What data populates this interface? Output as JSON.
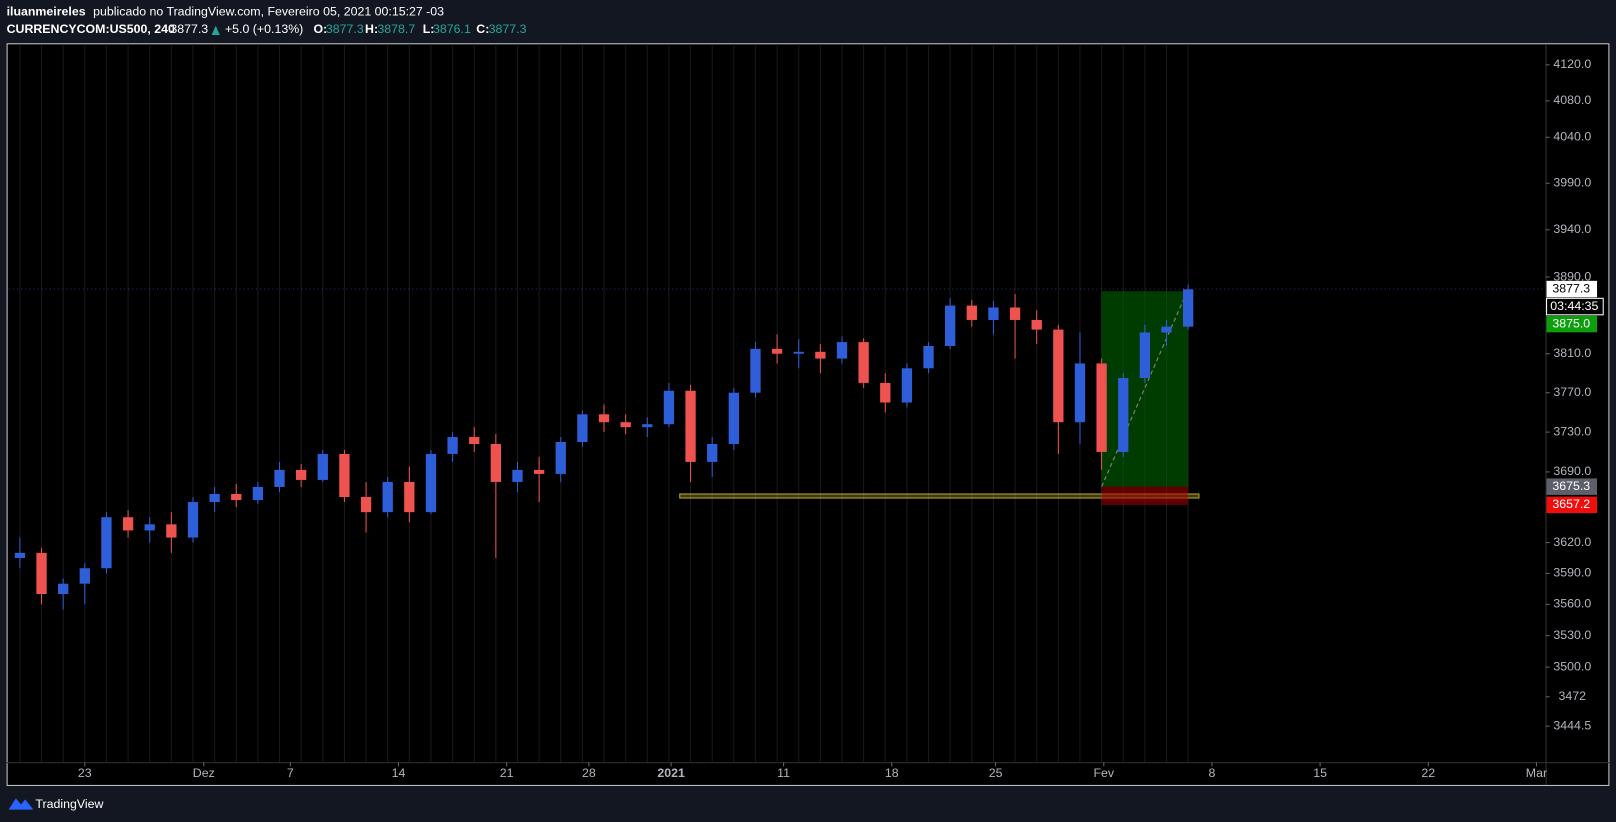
{
  "header": {
    "author": "iluanmeireles",
    "published": "publicado no TradingView.com, Fevereiro 05, 2021 00:15:27 -03",
    "symbol": "CURRENCYCOM:US500, 240",
    "last": "3877.3",
    "change": "+5.0 (+0.13%)",
    "ohlc": [
      {
        "label": "O:",
        "value": "3877.3"
      },
      {
        "label": "H:",
        "value": "3878.7"
      },
      {
        "label": "L:",
        "value": "3876.1"
      },
      {
        "label": "C:",
        "value": "3877.3"
      }
    ]
  },
  "footer": {
    "brand": "TradingView"
  },
  "chart_data": {
    "type": "candlestick",
    "log": true,
    "grid": true,
    "up_color": "#2f5fd8",
    "down_color": "#ef5350",
    "x": [
      -3,
      -2,
      -1,
      0,
      1,
      2,
      3,
      4,
      5,
      6,
      7,
      8,
      9,
      10,
      11,
      12,
      13,
      14,
      15,
      16,
      17,
      18,
      19,
      20,
      21,
      22,
      23,
      24,
      25,
      26,
      27,
      28,
      29,
      30,
      31,
      32,
      33,
      34,
      35,
      36,
      37,
      38,
      39,
      40,
      41,
      42,
      43,
      44,
      45,
      46,
      47,
      48,
      49,
      50,
      51
    ],
    "open": [
      3605,
      3610,
      3570,
      3580,
      3595,
      3645,
      3632,
      3638,
      3625,
      3660,
      3668,
      3662,
      3675,
      3692,
      3682,
      3708,
      3665,
      3650,
      3680,
      3650,
      3708,
      3725,
      3718,
      3680,
      3692,
      3688,
      3720,
      3748,
      3740,
      3735,
      3738,
      3772,
      3700,
      3718,
      3770,
      3815,
      3810,
      3812,
      3805,
      3822,
      3780,
      3760,
      3795,
      3818,
      3860,
      3845,
      3858,
      3845,
      3835,
      3740,
      3800,
      3710,
      3785,
      3832,
      3838
    ],
    "high": [
      3625,
      3615,
      3585,
      3600,
      3650,
      3652,
      3645,
      3650,
      3665,
      3675,
      3678,
      3680,
      3700,
      3698,
      3712,
      3712,
      3680,
      3685,
      3695,
      3712,
      3730,
      3735,
      3728,
      3700,
      3705,
      3725,
      3752,
      3758,
      3748,
      3745,
      3780,
      3778,
      3725,
      3775,
      3822,
      3830,
      3825,
      3820,
      3828,
      3826,
      3790,
      3800,
      3822,
      3868,
      3866,
      3865,
      3872,
      3855,
      3840,
      3832,
      3805,
      3790,
      3840,
      3845,
      3882
    ],
    "low": [
      3595,
      3560,
      3555,
      3560,
      3590,
      3625,
      3620,
      3610,
      3620,
      3650,
      3655,
      3658,
      3670,
      3675,
      3680,
      3660,
      3630,
      3645,
      3640,
      3648,
      3700,
      3710,
      3605,
      3670,
      3660,
      3680,
      3715,
      3730,
      3728,
      3725,
      3735,
      3680,
      3685,
      3712,
      3765,
      3800,
      3795,
      3790,
      3800,
      3775,
      3750,
      3755,
      3790,
      3815,
      3838,
      3830,
      3805,
      3820,
      3708,
      3718,
      3692,
      3705,
      3780,
      3818,
      3835
    ],
    "close": [
      3610,
      3570,
      3580,
      3595,
      3645,
      3632,
      3638,
      3625,
      3660,
      3668,
      3662,
      3675,
      3692,
      3682,
      3708,
      3665,
      3650,
      3680,
      3650,
      3708,
      3725,
      3718,
      3680,
      3692,
      3688,
      3720,
      3748,
      3740,
      3735,
      3738,
      3772,
      3700,
      3718,
      3770,
      3815,
      3810,
      3812,
      3805,
      3822,
      3780,
      3760,
      3795,
      3818,
      3860,
      3845,
      3858,
      3845,
      3835,
      3740,
      3800,
      3710,
      3785,
      3832,
      3838,
      3877
    ],
    "xlim": [
      -3.52,
      67.52
    ],
    "xticks": [
      {
        "value": 0,
        "label": "23"
      },
      {
        "value": 5.5,
        "label": "Dez"
      },
      {
        "value": 9.5,
        "label": "7"
      },
      {
        "value": 14.5,
        "label": "14"
      },
      {
        "value": 19.5,
        "label": "21"
      },
      {
        "value": 23.3,
        "label": "28"
      },
      {
        "value": 27.1,
        "label": "2021"
      },
      {
        "value": 32.3,
        "label": "11"
      },
      {
        "value": 37.3,
        "label": "18"
      },
      {
        "value": 42.1,
        "label": "25"
      },
      {
        "value": 47.1,
        "label": "Fev"
      },
      {
        "value": 52.1,
        "label": "8"
      },
      {
        "value": 57.1,
        "label": "15"
      },
      {
        "value": 62.1,
        "label": "22"
      },
      {
        "value": 67.1,
        "label": "Mar"
      }
    ],
    "ylim": [
      3411,
      4143
    ],
    "yticks": [
      {
        "value": 4120,
        "label": "4120.0"
      },
      {
        "value": 4080,
        "label": "4080.0"
      },
      {
        "value": 4040,
        "label": "4040.0"
      },
      {
        "value": 3990,
        "label": "3990.0"
      },
      {
        "value": 3940,
        "label": "3940.0"
      },
      {
        "value": 3890,
        "label": "3890.0"
      },
      {
        "value": 3810,
        "label": "3810.0"
      },
      {
        "value": 3770,
        "label": "3770.0"
      },
      {
        "value": 3730,
        "label": "3730.0"
      },
      {
        "value": 3690,
        "label": "3690.0"
      },
      {
        "value": 3620,
        "label": "3620.0"
      },
      {
        "value": 3590,
        "label": "3590.0"
      },
      {
        "value": 3560,
        "label": "3560.0"
      },
      {
        "value": 3530,
        "label": "3530.0"
      },
      {
        "value": 3500,
        "label": "3500.0"
      },
      3472,
      3444.5
    ],
    "last_price": {
      "value": 3877.3,
      "label": "3877.3"
    },
    "countdown": "03:44:35",
    "position": {
      "x0": 47,
      "x1": 51,
      "target": {
        "value": 3875,
        "label": "3875.0"
      },
      "entry": {
        "value": 3675.3,
        "label": "3675.3"
      },
      "stop": {
        "value": 3657.2,
        "label": "3657.2"
      }
    },
    "support_zone": {
      "x0": 27.5,
      "x1": 51.5,
      "low": 3664,
      "high": 3668
    }
  }
}
